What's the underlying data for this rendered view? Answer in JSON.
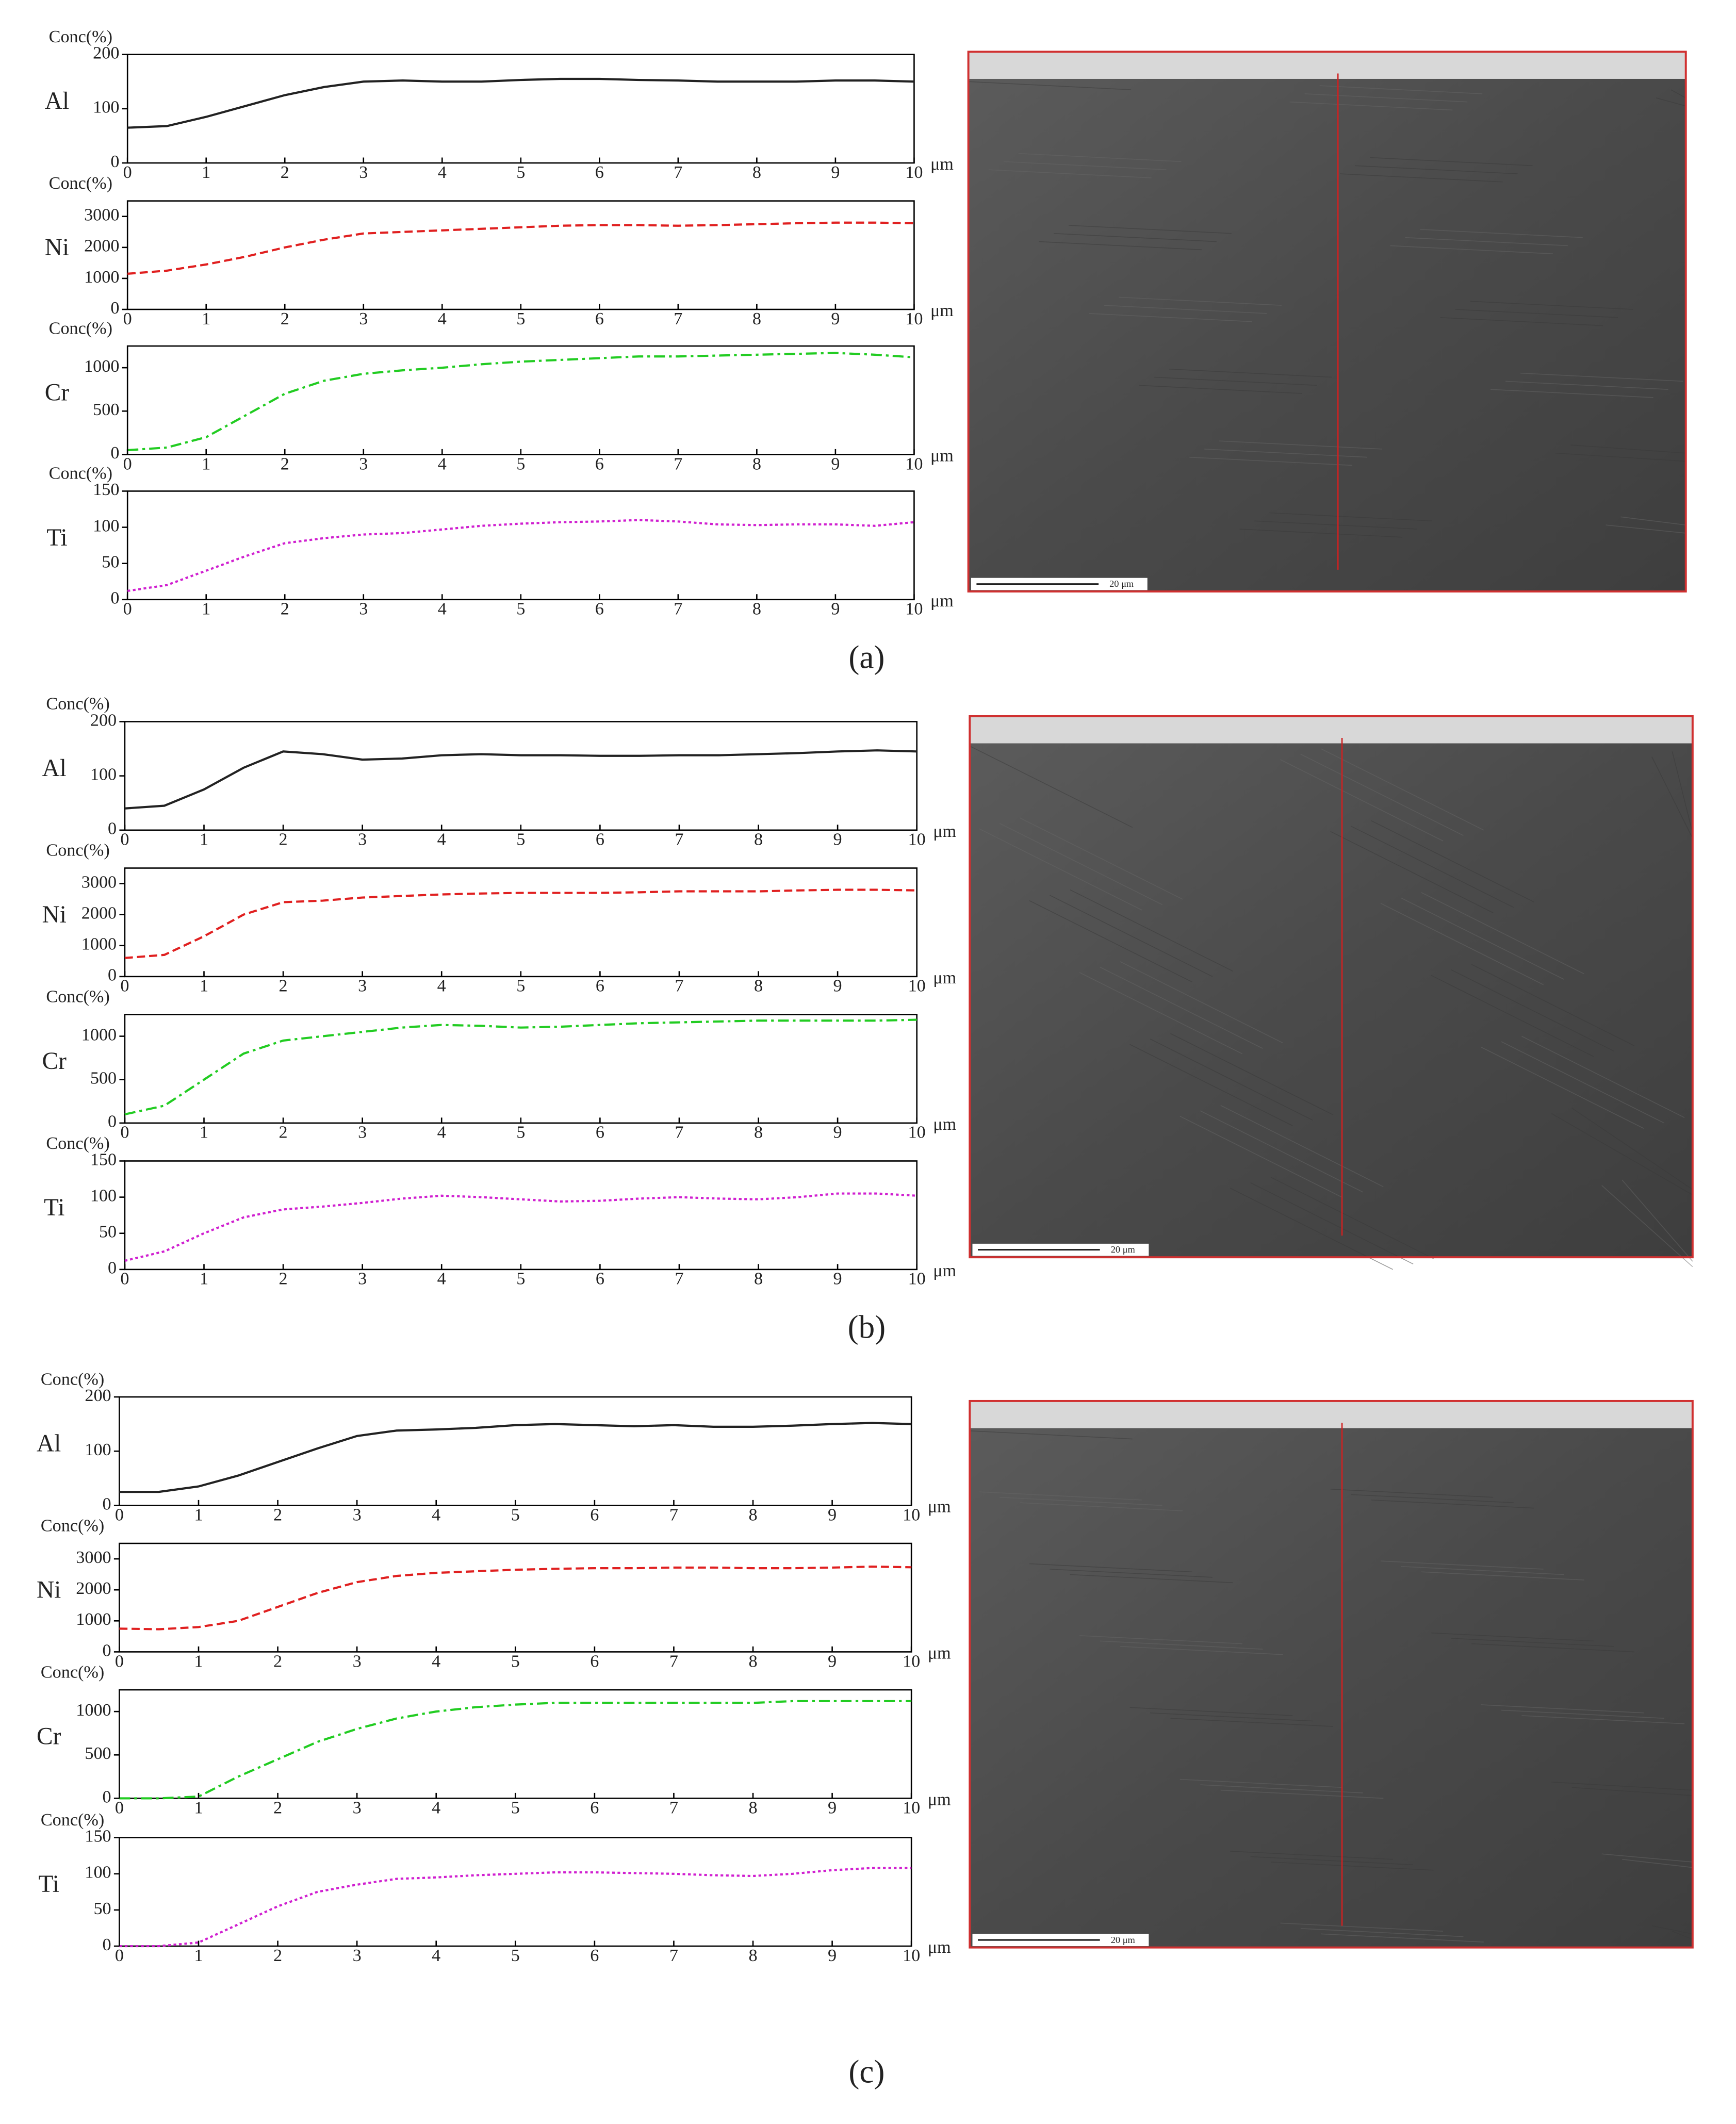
{
  "chart_data": [
    {
      "type": "line",
      "ylabel": "Conc(%)",
      "xlabel": "μm",
      "x": [
        0,
        0.5,
        1,
        1.5,
        2,
        2.5,
        3,
        3.5,
        4,
        4.5,
        5,
        5.5,
        6,
        6.5,
        7,
        7.5,
        8,
        8.5,
        9,
        9.5,
        10
      ],
      "xlim": [
        0,
        10
      ],
      "xticks": [
        0,
        1,
        2,
        3,
        4,
        5,
        6,
        7,
        8,
        9,
        10
      ],
      "ylim": [
        0,
        200
      ],
      "yticks": [
        0,
        100,
        200
      ],
      "series": [
        {
          "name": "Al",
          "color": "#222222",
          "dash": "solid",
          "values": [
            65,
            68,
            85,
            105,
            125,
            140,
            150,
            152,
            150,
            150,
            153,
            155,
            155,
            153,
            152,
            150,
            150,
            150,
            152,
            152,
            150
          ]
        }
      ]
    },
    {
      "type": "line",
      "ylabel": "Conc(%)",
      "xlabel": "μm",
      "x": [
        0,
        0.5,
        1,
        1.5,
        2,
        2.5,
        3,
        3.5,
        4,
        4.5,
        5,
        5.5,
        6,
        6.5,
        7,
        7.5,
        8,
        8.5,
        9,
        9.5,
        10
      ],
      "xlim": [
        0,
        10
      ],
      "xticks": [
        0,
        1,
        2,
        3,
        4,
        5,
        6,
        7,
        8,
        9,
        10
      ],
      "ylim": [
        0,
        3500
      ],
      "yticks": [
        0,
        1000,
        2000,
        3000
      ],
      "series": [
        {
          "name": "Ni",
          "color": "#e02020",
          "dash": "dashed",
          "values": [
            1150,
            1250,
            1450,
            1700,
            2000,
            2250,
            2450,
            2500,
            2550,
            2600,
            2650,
            2700,
            2720,
            2720,
            2700,
            2720,
            2750,
            2780,
            2800,
            2800,
            2780
          ]
        }
      ]
    },
    {
      "type": "line",
      "ylabel": "Conc(%)",
      "xlabel": "μm",
      "x": [
        0,
        0.5,
        1,
        1.5,
        2,
        2.5,
        3,
        3.5,
        4,
        4.5,
        5,
        5.5,
        6,
        6.5,
        7,
        7.5,
        8,
        8.5,
        9,
        9.5,
        10
      ],
      "xlim": [
        0,
        10
      ],
      "xticks": [
        0,
        1,
        2,
        3,
        4,
        5,
        6,
        7,
        8,
        9,
        10
      ],
      "ylim": [
        0,
        1250
      ],
      "yticks": [
        0,
        500,
        1000
      ],
      "series": [
        {
          "name": "Cr",
          "color": "#22cc22",
          "dash": "dashdot",
          "values": [
            50,
            80,
            200,
            450,
            700,
            850,
            930,
            970,
            1000,
            1040,
            1070,
            1090,
            1110,
            1130,
            1130,
            1140,
            1150,
            1160,
            1170,
            1150,
            1120
          ]
        }
      ]
    },
    {
      "type": "line",
      "ylabel": "Conc(%)",
      "xlabel": "μm",
      "x": [
        0,
        0.5,
        1,
        1.5,
        2,
        2.5,
        3,
        3.5,
        4,
        4.5,
        5,
        5.5,
        6,
        6.5,
        7,
        7.5,
        8,
        8.5,
        9,
        9.5,
        10
      ],
      "xlim": [
        0,
        10
      ],
      "xticks": [
        0,
        1,
        2,
        3,
        4,
        5,
        6,
        7,
        8,
        9,
        10
      ],
      "ylim": [
        0,
        150
      ],
      "yticks": [
        0,
        50,
        100,
        150
      ],
      "series": [
        {
          "name": "Ti",
          "color": "#d020d0",
          "dash": "dotted",
          "values": [
            12,
            20,
            40,
            60,
            78,
            85,
            90,
            92,
            97,
            102,
            105,
            107,
            108,
            110,
            108,
            104,
            103,
            104,
            104,
            102,
            107
          ]
        }
      ]
    },
    {
      "type": "line",
      "ylabel": "Conc(%)",
      "xlabel": "μm",
      "x": [
        0,
        0.5,
        1,
        1.5,
        2,
        2.5,
        3,
        3.5,
        4,
        4.5,
        5,
        5.5,
        6,
        6.5,
        7,
        7.5,
        8,
        8.5,
        9,
        9.5,
        10
      ],
      "xlim": [
        0,
        10
      ],
      "xticks": [
        0,
        1,
        2,
        3,
        4,
        5,
        6,
        7,
        8,
        9,
        10
      ],
      "ylim": [
        0,
        200
      ],
      "yticks": [
        0,
        100,
        200
      ],
      "series": [
        {
          "name": "Al",
          "color": "#222222",
          "dash": "solid",
          "values": [
            40,
            45,
            75,
            115,
            145,
            140,
            130,
            132,
            138,
            140,
            138,
            138,
            137,
            137,
            138,
            138,
            140,
            142,
            145,
            147,
            145
          ]
        }
      ]
    },
    {
      "type": "line",
      "ylabel": "Conc(%)",
      "xlabel": "μm",
      "x": [
        0,
        0.5,
        1,
        1.5,
        2,
        2.5,
        3,
        3.5,
        4,
        4.5,
        5,
        5.5,
        6,
        6.5,
        7,
        7.5,
        8,
        8.5,
        9,
        9.5,
        10
      ],
      "xlim": [
        0,
        10
      ],
      "xticks": [
        0,
        1,
        2,
        3,
        4,
        5,
        6,
        7,
        8,
        9,
        10
      ],
      "ylim": [
        0,
        3500
      ],
      "yticks": [
        0,
        1000,
        2000,
        3000
      ],
      "series": [
        {
          "name": "Ni",
          "color": "#e02020",
          "dash": "dashed",
          "values": [
            600,
            700,
            1300,
            2000,
            2400,
            2450,
            2550,
            2600,
            2650,
            2680,
            2700,
            2700,
            2700,
            2720,
            2750,
            2750,
            2750,
            2780,
            2800,
            2800,
            2780
          ]
        }
      ]
    },
    {
      "type": "line",
      "ylabel": "Conc(%)",
      "xlabel": "μm",
      "x": [
        0,
        0.5,
        1,
        1.5,
        2,
        2.5,
        3,
        3.5,
        4,
        4.5,
        5,
        5.5,
        6,
        6.5,
        7,
        7.5,
        8,
        8.5,
        9,
        9.5,
        10
      ],
      "xlim": [
        0,
        10
      ],
      "xticks": [
        0,
        1,
        2,
        3,
        4,
        5,
        6,
        7,
        8,
        9,
        10
      ],
      "ylim": [
        0,
        1250
      ],
      "yticks": [
        0,
        500,
        1000
      ],
      "series": [
        {
          "name": "Cr",
          "color": "#22cc22",
          "dash": "dashdot",
          "values": [
            100,
            200,
            500,
            800,
            950,
            1000,
            1050,
            1100,
            1130,
            1120,
            1100,
            1110,
            1130,
            1150,
            1160,
            1170,
            1180,
            1180,
            1180,
            1180,
            1190
          ]
        }
      ]
    },
    {
      "type": "line",
      "ylabel": "Conc(%)",
      "xlabel": "μm",
      "x": [
        0,
        0.5,
        1,
        1.5,
        2,
        2.5,
        3,
        3.5,
        4,
        4.5,
        5,
        5.5,
        6,
        6.5,
        7,
        7.5,
        8,
        8.5,
        9,
        9.5,
        10
      ],
      "xlim": [
        0,
        10
      ],
      "xticks": [
        0,
        1,
        2,
        3,
        4,
        5,
        6,
        7,
        8,
        9,
        10
      ],
      "ylim": [
        0,
        150
      ],
      "yticks": [
        0,
        50,
        100,
        150
      ],
      "series": [
        {
          "name": "Ti",
          "color": "#d020d0",
          "dash": "dotted",
          "values": [
            12,
            25,
            50,
            72,
            83,
            87,
            92,
            98,
            102,
            100,
            97,
            94,
            95,
            98,
            100,
            98,
            97,
            100,
            105,
            105,
            102
          ]
        }
      ]
    },
    {
      "type": "line",
      "ylabel": "Conc(%)",
      "xlabel": "μm",
      "x": [
        0,
        0.5,
        1,
        1.5,
        2,
        2.5,
        3,
        3.5,
        4,
        4.5,
        5,
        5.5,
        6,
        6.5,
        7,
        7.5,
        8,
        8.5,
        9,
        9.5,
        10
      ],
      "xlim": [
        0,
        10
      ],
      "xticks": [
        0,
        1,
        2,
        3,
        4,
        5,
        6,
        7,
        8,
        9,
        10
      ],
      "ylim": [
        0,
        200
      ],
      "yticks": [
        0,
        100,
        200
      ],
      "series": [
        {
          "name": "Al",
          "color": "#222222",
          "dash": "solid",
          "values": [
            25,
            25,
            35,
            55,
            80,
            105,
            128,
            138,
            140,
            143,
            148,
            150,
            148,
            146,
            148,
            145,
            145,
            147,
            150,
            152,
            150
          ]
        }
      ]
    },
    {
      "type": "line",
      "ylabel": "Conc(%)",
      "xlabel": "μm",
      "x": [
        0,
        0.5,
        1,
        1.5,
        2,
        2.5,
        3,
        3.5,
        4,
        4.5,
        5,
        5.5,
        6,
        6.5,
        7,
        7.5,
        8,
        8.5,
        9,
        9.5,
        10
      ],
      "xlim": [
        0,
        10
      ],
      "xticks": [
        0,
        1,
        2,
        3,
        4,
        5,
        6,
        7,
        8,
        9,
        10
      ],
      "ylim": [
        0,
        3500
      ],
      "yticks": [
        0,
        1000,
        2000,
        3000
      ],
      "series": [
        {
          "name": "Ni",
          "color": "#e02020",
          "dash": "dashed",
          "values": [
            750,
            730,
            800,
            1000,
            1450,
            1900,
            2250,
            2450,
            2550,
            2600,
            2650,
            2680,
            2700,
            2700,
            2720,
            2720,
            2700,
            2700,
            2720,
            2750,
            2730
          ]
        }
      ]
    },
    {
      "type": "line",
      "ylabel": "Conc(%)",
      "xlabel": "μm",
      "x": [
        0,
        0.5,
        1,
        1.5,
        2,
        2.5,
        3,
        3.5,
        4,
        4.5,
        5,
        5.5,
        6,
        6.5,
        7,
        7.5,
        8,
        8.5,
        9,
        9.5,
        10
      ],
      "xlim": [
        0,
        10
      ],
      "xticks": [
        0,
        1,
        2,
        3,
        4,
        5,
        6,
        7,
        8,
        9,
        10
      ],
      "ylim": [
        0,
        1250
      ],
      "yticks": [
        0,
        500,
        1000
      ],
      "series": [
        {
          "name": "Cr",
          "color": "#22cc22",
          "dash": "dashdot",
          "values": [
            0,
            0,
            20,
            250,
            450,
            650,
            800,
            920,
            1000,
            1050,
            1080,
            1100,
            1100,
            1100,
            1100,
            1100,
            1100,
            1120,
            1120,
            1120,
            1120
          ]
        }
      ]
    },
    {
      "type": "line",
      "ylabel": "Conc(%)",
      "xlabel": "μm",
      "x": [
        0,
        0.5,
        1,
        1.5,
        2,
        2.5,
        3,
        3.5,
        4,
        4.5,
        5,
        5.5,
        6,
        6.5,
        7,
        7.5,
        8,
        8.5,
        9,
        9.5,
        10
      ],
      "xlim": [
        0,
        10
      ],
      "xticks": [
        0,
        1,
        2,
        3,
        4,
        5,
        6,
        7,
        8,
        9,
        10
      ],
      "ylim": [
        0,
        150
      ],
      "yticks": [
        0,
        50,
        100,
        150
      ],
      "series": [
        {
          "name": "Ti",
          "color": "#d020d0",
          "dash": "dotted",
          "values": [
            0,
            0,
            5,
            30,
            55,
            75,
            85,
            93,
            95,
            98,
            100,
            102,
            102,
            101,
            100,
            98,
            97,
            100,
            105,
            108,
            108
          ]
        }
      ]
    }
  ],
  "panel_labels": [
    "(a)",
    "(b)",
    "(c)"
  ],
  "images": [
    {
      "scale_bar": "20 μm"
    },
    {
      "scale_bar": "20 μm"
    },
    {
      "scale_bar": "20 μm"
    }
  ]
}
